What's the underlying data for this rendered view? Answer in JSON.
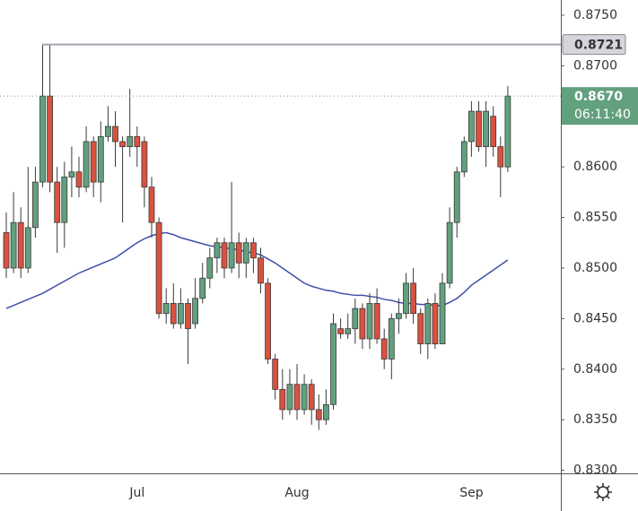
{
  "chart_data": {
    "type": "candlestick",
    "categories": [
      null,
      null,
      null,
      null,
      null,
      null,
      null,
      null,
      null,
      null,
      null,
      null,
      null,
      null,
      null,
      null,
      null,
      null,
      "Jul",
      null,
      null,
      null,
      null,
      null,
      null,
      null,
      null,
      null,
      null,
      null,
      null,
      null,
      null,
      null,
      null,
      null,
      null,
      null,
      null,
      null,
      "Aug",
      null,
      null,
      null,
      null,
      null,
      null,
      null,
      null,
      null,
      null,
      null,
      null,
      null,
      null,
      null,
      null,
      null,
      null,
      null,
      null,
      null,
      null,
      null,
      "Sep",
      null,
      null,
      null,
      null,
      null
    ],
    "open": [
      0.8535,
      0.85,
      0.8545,
      0.85,
      0.854,
      0.8585,
      0.867,
      0.8585,
      0.8545,
      0.859,
      0.8595,
      0.858,
      0.8625,
      0.8585,
      0.863,
      0.864,
      0.8625,
      0.862,
      0.863,
      0.8625,
      0.858,
      0.8545,
      0.8455,
      0.8465,
      0.8445,
      0.8465,
      0.8445,
      0.847,
      0.849,
      0.851,
      0.8525,
      0.85,
      0.8525,
      0.8505,
      0.8525,
      0.851,
      0.8485,
      0.841,
      0.838,
      0.836,
      0.8385,
      0.836,
      0.8385,
      0.836,
      0.835,
      0.8365,
      0.844,
      0.8435,
      0.844,
      0.846,
      0.843,
      0.8465,
      0.843,
      0.841,
      0.845,
      0.8455,
      0.8485,
      0.8455,
      0.8425,
      0.8465,
      0.8425,
      0.8485,
      0.8545,
      0.8595,
      0.8625,
      0.8655,
      0.862,
      0.865,
      0.862,
      0.86
    ],
    "high": [
      0.8555,
      0.8575,
      0.856,
      0.86,
      0.86,
      0.8721,
      0.8721,
      0.86,
      0.8605,
      0.862,
      0.861,
      0.864,
      0.863,
      0.8645,
      0.866,
      0.8655,
      0.863,
      0.8677,
      0.864,
      0.863,
      0.859,
      0.855,
      0.848,
      0.8485,
      0.848,
      0.847,
      0.849,
      0.8505,
      0.852,
      0.853,
      0.853,
      0.8585,
      0.8535,
      0.853,
      0.853,
      0.852,
      0.849,
      0.8415,
      0.84,
      0.84,
      0.8405,
      0.8395,
      0.839,
      0.8375,
      0.838,
      0.8455,
      0.845,
      0.8455,
      0.847,
      0.8465,
      0.8475,
      0.848,
      0.844,
      0.8455,
      0.847,
      0.8495,
      0.85,
      0.846,
      0.847,
      0.8475,
      0.8495,
      0.856,
      0.86,
      0.863,
      0.8665,
      0.8665,
      0.8665,
      0.866,
      0.863,
      0.868
    ],
    "low": [
      0.849,
      0.8495,
      0.849,
      0.8495,
      0.853,
      0.858,
      0.8575,
      0.8515,
      0.852,
      0.857,
      0.857,
      0.8575,
      0.857,
      0.8565,
      0.8625,
      0.86,
      0.8545,
      0.861,
      0.86,
      0.856,
      0.853,
      0.845,
      0.8445,
      0.844,
      0.844,
      0.8405,
      0.844,
      0.8465,
      0.848,
      0.8495,
      0.849,
      0.8495,
      0.849,
      0.849,
      0.8495,
      0.8475,
      0.8405,
      0.837,
      0.835,
      0.8355,
      0.835,
      0.8355,
      0.8345,
      0.834,
      0.8345,
      0.836,
      0.843,
      0.843,
      0.8425,
      0.842,
      0.842,
      0.8425,
      0.84,
      0.839,
      0.8435,
      0.845,
      0.8445,
      0.8415,
      0.841,
      0.842,
      0.8425,
      0.848,
      0.853,
      0.859,
      0.861,
      0.8615,
      0.86,
      0.861,
      0.857,
      0.8595
    ],
    "close": [
      0.85,
      0.8545,
      0.85,
      0.854,
      0.8585,
      0.867,
      0.8585,
      0.8545,
      0.859,
      0.8595,
      0.858,
      0.8625,
      0.8585,
      0.863,
      0.864,
      0.8625,
      0.862,
      0.863,
      0.862,
      0.858,
      0.8545,
      0.8455,
      0.8465,
      0.8445,
      0.8465,
      0.844,
      0.847,
      0.849,
      0.851,
      0.8525,
      0.85,
      0.8525,
      0.8505,
      0.8525,
      0.851,
      0.8485,
      0.841,
      0.838,
      0.836,
      0.8385,
      0.836,
      0.8385,
      0.836,
      0.835,
      0.8365,
      0.8445,
      0.8435,
      0.844,
      0.846,
      0.843,
      0.8465,
      0.843,
      0.841,
      0.845,
      0.8455,
      0.8485,
      0.8455,
      0.8425,
      0.8465,
      0.8425,
      0.8485,
      0.8545,
      0.8595,
      0.8625,
      0.8655,
      0.862,
      0.8655,
      0.862,
      0.86,
      0.867
    ],
    "up_color": "#62a07e",
    "down_color": "#d9523f",
    "outline_color": "#3a3a3a",
    "lines": [
      {
        "color": "#3f4fa8",
        "values": [
          0.846,
          0.8463,
          0.8466,
          0.8469,
          0.8472,
          0.8475,
          0.8479,
          0.8483,
          0.8487,
          0.8491,
          0.8495,
          0.8498,
          0.8501,
          0.8504,
          0.8507,
          0.851,
          0.8515,
          0.852,
          0.8525,
          0.8529,
          0.8532,
          0.8534,
          0.8535,
          0.8533,
          0.853,
          0.8528,
          0.8526,
          0.8524,
          0.8522,
          0.8521,
          0.852,
          0.8519,
          0.8518,
          0.8516,
          0.8515,
          0.8513,
          0.8509,
          0.8505,
          0.85,
          0.8495,
          0.849,
          0.8485,
          0.8482,
          0.848,
          0.8478,
          0.8477,
          0.8475,
          0.8474,
          0.8473,
          0.8473,
          0.8472,
          0.8471,
          0.8469,
          0.8468,
          0.8466,
          0.8465,
          0.8465,
          0.8464,
          0.8464,
          0.8463,
          0.8463,
          0.8466,
          0.847,
          0.8476,
          0.8483,
          0.8488,
          0.8493,
          0.8498,
          0.8503,
          0.8508
        ]
      }
    ],
    "ylim": [
      0.8297,
      0.8765
    ],
    "yticks": [
      {
        "value": 0.875,
        "label": "0.8750"
      },
      {
        "value": 0.87,
        "label": "0.8700"
      },
      {
        "value": 0.86,
        "label": "0.8600"
      },
      {
        "value": 0.855,
        "label": "0.8550"
      },
      {
        "value": 0.85,
        "label": "0.8500"
      },
      {
        "value": 0.845,
        "label": "0.8450"
      },
      {
        "value": 0.84,
        "label": "0.8400"
      },
      {
        "value": 0.835,
        "label": "0.8350"
      },
      {
        "value": 0.83,
        "label": "0.8300"
      }
    ],
    "level": {
      "value": 0.8721,
      "label": "0.8721",
      "color": "#a3a6b0"
    },
    "last_price": {
      "value": 0.867,
      "label": "0.8670",
      "countdown": "06:11:40",
      "color": "#62a07e"
    }
  }
}
